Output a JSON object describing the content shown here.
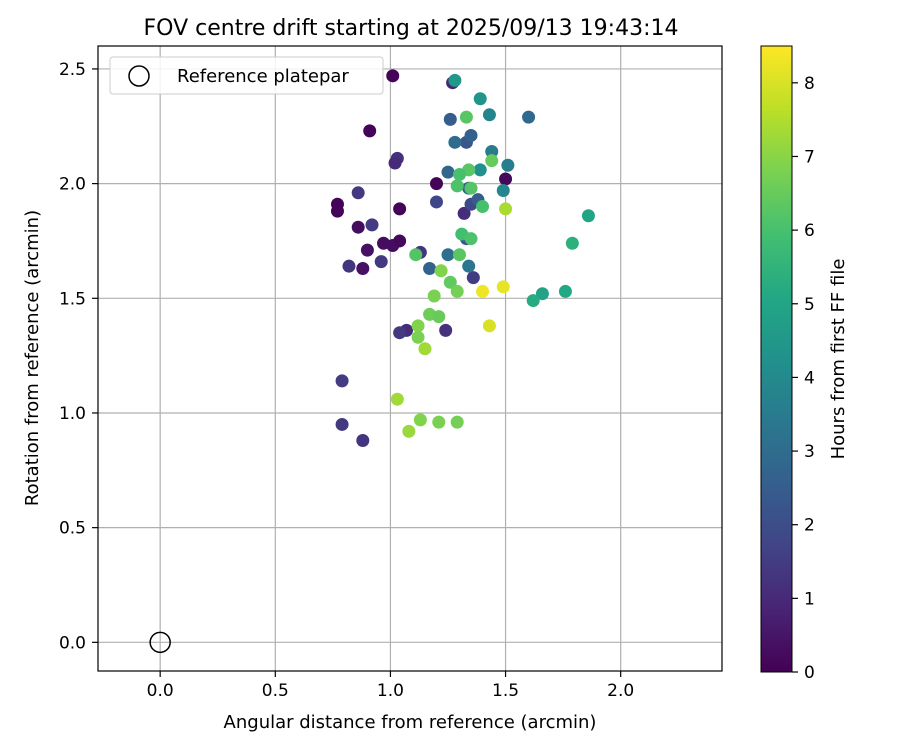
{
  "chart_data": {
    "type": "scatter",
    "title": "FOV centre drift starting at 2025/09/13 19:43:14",
    "xlabel": "Angular distance from reference (arcmin)",
    "ylabel": "Rotation from reference (arcmin)",
    "xlim": [
      -0.27,
      2.44
    ],
    "ylim": [
      -0.125,
      2.6
    ],
    "xticks": [
      "0.0",
      "0.5",
      "1.0",
      "1.5",
      "2.0"
    ],
    "yticks": [
      "0.0",
      "0.5",
      "1.0",
      "1.5",
      "2.0",
      "2.5"
    ],
    "grid": true,
    "legend": {
      "placement": "top-left",
      "entries": [
        "Reference platepar"
      ]
    },
    "reference_point": {
      "x": 0.0,
      "y": 0.0
    },
    "colorbar": {
      "label": "Hours from first FF file",
      "range": [
        0,
        8.5
      ],
      "ticks": [
        "0",
        "1",
        "2",
        "3",
        "4",
        "5",
        "6",
        "7",
        "8"
      ],
      "colormap": "viridis"
    },
    "points": [
      {
        "x": 1.01,
        "y": 2.47,
        "h": 0.1
      },
      {
        "x": 0.91,
        "y": 2.23,
        "h": 0.1
      },
      {
        "x": 0.77,
        "y": 1.91,
        "h": 0.1
      },
      {
        "x": 0.77,
        "y": 1.88,
        "h": 0.1
      },
      {
        "x": 1.04,
        "y": 1.89,
        "h": 0.1
      },
      {
        "x": 1.2,
        "y": 2.0,
        "h": 0.1
      },
      {
        "x": 1.5,
        "y": 2.02,
        "h": 0.2
      },
      {
        "x": 0.86,
        "y": 1.81,
        "h": 0.3
      },
      {
        "x": 0.97,
        "y": 1.74,
        "h": 0.3
      },
      {
        "x": 1.01,
        "y": 1.73,
        "h": 0.3
      },
      {
        "x": 1.04,
        "y": 1.75,
        "h": 0.2
      },
      {
        "x": 0.9,
        "y": 1.71,
        "h": 0.4
      },
      {
        "x": 0.88,
        "y": 1.63,
        "h": 0.4
      },
      {
        "x": 1.27,
        "y": 2.44,
        "h": 0.9
      },
      {
        "x": 1.03,
        "y": 2.11,
        "h": 1.2
      },
      {
        "x": 1.02,
        "y": 2.09,
        "h": 1.0
      },
      {
        "x": 0.86,
        "y": 1.96,
        "h": 1.4
      },
      {
        "x": 0.92,
        "y": 1.82,
        "h": 1.5
      },
      {
        "x": 0.82,
        "y": 1.64,
        "h": 1.3
      },
      {
        "x": 0.96,
        "y": 1.66,
        "h": 1.4
      },
      {
        "x": 1.13,
        "y": 1.7,
        "h": 1.3
      },
      {
        "x": 1.2,
        "y": 1.92,
        "h": 1.8
      },
      {
        "x": 1.32,
        "y": 1.87,
        "h": 1.1
      },
      {
        "x": 1.35,
        "y": 1.91,
        "h": 1.9
      },
      {
        "x": 1.36,
        "y": 1.59,
        "h": 1.5
      },
      {
        "x": 1.07,
        "y": 1.36,
        "h": 1.0
      },
      {
        "x": 1.04,
        "y": 1.35,
        "h": 1.4
      },
      {
        "x": 1.24,
        "y": 1.36,
        "h": 1.2
      },
      {
        "x": 0.79,
        "y": 1.14,
        "h": 1.5
      },
      {
        "x": 0.79,
        "y": 0.95,
        "h": 1.4
      },
      {
        "x": 0.88,
        "y": 0.88,
        "h": 1.3
      },
      {
        "x": 1.33,
        "y": 2.18,
        "h": 2.3
      },
      {
        "x": 1.26,
        "y": 2.28,
        "h": 2.5
      },
      {
        "x": 1.35,
        "y": 2.21,
        "h": 2.6
      },
      {
        "x": 1.6,
        "y": 2.29,
        "h": 2.9
      },
      {
        "x": 1.28,
        "y": 2.18,
        "h": 3.0
      },
      {
        "x": 1.25,
        "y": 2.05,
        "h": 2.8
      },
      {
        "x": 1.34,
        "y": 1.98,
        "h": 2.7
      },
      {
        "x": 1.38,
        "y": 1.93,
        "h": 2.5
      },
      {
        "x": 1.33,
        "y": 1.76,
        "h": 2.3
      },
      {
        "x": 1.17,
        "y": 1.63,
        "h": 2.7
      },
      {
        "x": 1.25,
        "y": 1.69,
        "h": 3.1
      },
      {
        "x": 1.34,
        "y": 1.64,
        "h": 3.3
      },
      {
        "x": 1.44,
        "y": 2.14,
        "h": 3.5
      },
      {
        "x": 1.51,
        "y": 2.08,
        "h": 3.6
      },
      {
        "x": 1.43,
        "y": 2.3,
        "h": 3.8
      },
      {
        "x": 1.39,
        "y": 2.06,
        "h": 4.2
      },
      {
        "x": 1.49,
        "y": 1.97,
        "h": 3.9
      },
      {
        "x": 1.39,
        "y": 2.37,
        "h": 4.4
      },
      {
        "x": 1.28,
        "y": 2.45,
        "h": 4.5
      },
      {
        "x": 1.86,
        "y": 1.86,
        "h": 5.0
      },
      {
        "x": 1.79,
        "y": 1.74,
        "h": 5.4
      },
      {
        "x": 1.66,
        "y": 1.52,
        "h": 4.9
      },
      {
        "x": 1.62,
        "y": 1.49,
        "h": 5.2
      },
      {
        "x": 1.76,
        "y": 1.53,
        "h": 5.1
      },
      {
        "x": 1.33,
        "y": 2.29,
        "h": 6.3
      },
      {
        "x": 1.34,
        "y": 2.06,
        "h": 6.3
      },
      {
        "x": 1.3,
        "y": 2.04,
        "h": 6.0
      },
      {
        "x": 1.35,
        "y": 1.98,
        "h": 6.2
      },
      {
        "x": 1.29,
        "y": 1.99,
        "h": 6.1
      },
      {
        "x": 1.44,
        "y": 2.1,
        "h": 6.5
      },
      {
        "x": 1.4,
        "y": 1.9,
        "h": 6.0
      },
      {
        "x": 1.31,
        "y": 1.78,
        "h": 5.9
      },
      {
        "x": 1.35,
        "y": 1.76,
        "h": 6.1
      },
      {
        "x": 1.3,
        "y": 1.69,
        "h": 6.3
      },
      {
        "x": 1.11,
        "y": 1.69,
        "h": 6.2
      },
      {
        "x": 1.26,
        "y": 1.57,
        "h": 6.4
      },
      {
        "x": 1.29,
        "y": 1.53,
        "h": 6.7
      },
      {
        "x": 1.19,
        "y": 1.51,
        "h": 6.8
      },
      {
        "x": 1.22,
        "y": 1.62,
        "h": 6.9
      },
      {
        "x": 1.17,
        "y": 1.43,
        "h": 6.6
      },
      {
        "x": 1.21,
        "y": 1.42,
        "h": 6.5
      },
      {
        "x": 1.12,
        "y": 1.38,
        "h": 6.9
      },
      {
        "x": 1.12,
        "y": 1.33,
        "h": 6.8
      },
      {
        "x": 1.15,
        "y": 1.28,
        "h": 7.3
      },
      {
        "x": 1.5,
        "y": 1.89,
        "h": 7.4
      },
      {
        "x": 1.03,
        "y": 1.06,
        "h": 7.3
      },
      {
        "x": 1.13,
        "y": 0.97,
        "h": 6.9
      },
      {
        "x": 1.21,
        "y": 0.96,
        "h": 6.8
      },
      {
        "x": 1.29,
        "y": 0.96,
        "h": 6.7
      },
      {
        "x": 1.08,
        "y": 0.92,
        "h": 7.2
      },
      {
        "x": 1.4,
        "y": 1.53,
        "h": 8.3
      },
      {
        "x": 1.49,
        "y": 1.55,
        "h": 8.2
      },
      {
        "x": 1.43,
        "y": 1.38,
        "h": 8.0
      }
    ]
  }
}
